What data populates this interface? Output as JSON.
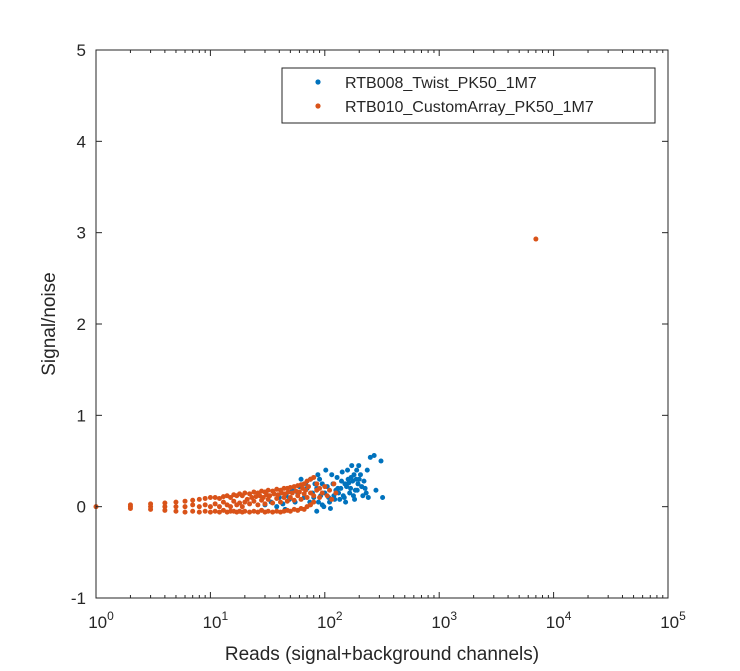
{
  "chart_data": {
    "type": "scatter",
    "title": "",
    "xlabel": "Reads (signal+background channels)",
    "ylabel": "Signal/noise",
    "xscale": "log",
    "xlim": [
      1,
      100000
    ],
    "ylim": [
      -1,
      5
    ],
    "x_ticks": [
      {
        "value": 1,
        "base": "10",
        "exp": "0"
      },
      {
        "value": 10,
        "base": "10",
        "exp": "1"
      },
      {
        "value": 100,
        "base": "10",
        "exp": "2"
      },
      {
        "value": 1000,
        "base": "10",
        "exp": "3"
      },
      {
        "value": 10000,
        "base": "10",
        "exp": "4"
      },
      {
        "value": 100000,
        "base": "10",
        "exp": "5"
      }
    ],
    "y_ticks": [
      -1,
      0,
      1,
      2,
      3,
      4,
      5
    ],
    "grid": false,
    "legend_position": "top-right",
    "series": [
      {
        "name": "RTB008_Twist_PK50_1M7",
        "color": "#0072bd",
        "points": [
          [
            95,
            0.02
          ],
          [
            110,
            0.05
          ],
          [
            120,
            0.12
          ],
          [
            130,
            0.2
          ],
          [
            140,
            0.28
          ],
          [
            150,
            0.25
          ],
          [
            160,
            0.3
          ],
          [
            170,
            0.32
          ],
          [
            180,
            0.35
          ],
          [
            190,
            0.4
          ],
          [
            200,
            0.3
          ],
          [
            210,
            0.22
          ],
          [
            220,
            0.28
          ],
          [
            230,
            0.15
          ],
          [
            240,
            0.1
          ],
          [
            250,
            0.54
          ],
          [
            270,
            0.56
          ],
          [
            280,
            0.18
          ],
          [
            310,
            0.5
          ],
          [
            320,
            0.1
          ],
          [
            115,
            0.35
          ],
          [
            125,
            0.18
          ],
          [
            135,
            0.08
          ],
          [
            145,
            0.12
          ],
          [
            155,
            0.22
          ],
          [
            165,
            0.15
          ],
          [
            175,
            0.28
          ],
          [
            185,
            0.18
          ],
          [
            195,
            0.25
          ],
          [
            100,
            0.15
          ],
          [
            105,
            0.22
          ],
          [
            90,
            0.3
          ],
          [
            85,
            0.2
          ],
          [
            80,
            0.1
          ],
          [
            88,
            0.05
          ],
          [
            98,
            0.0
          ],
          [
            108,
            0.1
          ],
          [
            118,
            0.25
          ],
          [
            128,
            0.32
          ],
          [
            138,
            0.2
          ],
          [
            148,
            0.1
          ],
          [
            158,
            0.4
          ],
          [
            168,
            0.2
          ],
          [
            178,
            0.12
          ],
          [
            188,
            0.3
          ],
          [
            198,
            0.45
          ],
          [
            112,
            -0.02
          ],
          [
            122,
            0.08
          ],
          [
            132,
            0.15
          ],
          [
            142,
            0.38
          ],
          [
            152,
            0.05
          ],
          [
            162,
            0.26
          ],
          [
            172,
            0.45
          ],
          [
            182,
            0.08
          ],
          [
            192,
            0.18
          ],
          [
            205,
            0.35
          ],
          [
            215,
            0.12
          ],
          [
            225,
            0.2
          ],
          [
            235,
            0.4
          ],
          [
            95,
            0.25
          ],
          [
            102,
            0.4
          ],
          [
            92,
            0.12
          ],
          [
            87,
            0.35
          ],
          [
            82,
            0.25
          ],
          [
            78,
            0.15
          ],
          [
            74,
            0.05
          ],
          [
            70,
            0.2
          ],
          [
            66,
            0.1
          ],
          [
            62,
            0.3
          ],
          [
            58,
            0.15
          ],
          [
            55,
            0.05
          ],
          [
            52,
            0.18
          ],
          [
            49,
            0.08
          ],
          [
            46,
            0.12
          ],
          [
            43,
            0.03
          ],
          [
            40,
            0.1
          ],
          [
            75,
            0.3
          ],
          [
            68,
            0.25
          ],
          [
            60,
            0.22
          ],
          [
            85,
            -0.05
          ],
          [
            45,
            -0.03
          ],
          [
            38,
            0.0
          ],
          [
            34,
            0.05
          ],
          [
            30,
            0.02
          ]
        ]
      },
      {
        "name": "RTB010_CustomArray_PK50_1M7",
        "color": "#d95319",
        "points": [
          [
            1,
            0.0
          ],
          [
            2,
            0.0
          ],
          [
            2,
            0.02
          ],
          [
            2,
            -0.02
          ],
          [
            3,
            0.0
          ],
          [
            3,
            0.03
          ],
          [
            3,
            -0.03
          ],
          [
            4,
            0.0
          ],
          [
            4,
            0.04
          ],
          [
            4,
            -0.04
          ],
          [
            5,
            0.0
          ],
          [
            5,
            0.05
          ],
          [
            5,
            -0.05
          ],
          [
            6,
            0.0
          ],
          [
            6,
            0.06
          ],
          [
            6,
            -0.06
          ],
          [
            7,
            0.02
          ],
          [
            7,
            0.07
          ],
          [
            7,
            -0.05
          ],
          [
            8,
            0.0
          ],
          [
            8,
            0.08
          ],
          [
            8,
            -0.06
          ],
          [
            9,
            0.02
          ],
          [
            9,
            0.09
          ],
          [
            9,
            -0.05
          ],
          [
            10,
            0.0
          ],
          [
            10,
            0.1
          ],
          [
            10,
            -0.06
          ],
          [
            11,
            0.03
          ],
          [
            11,
            0.1
          ],
          [
            11,
            -0.05
          ],
          [
            12,
            0.0
          ],
          [
            12,
            0.09
          ],
          [
            12,
            -0.06
          ],
          [
            13,
            0.05
          ],
          [
            13,
            0.11
          ],
          [
            13,
            -0.04
          ],
          [
            14,
            0.02
          ],
          [
            14,
            0.12
          ],
          [
            14,
            -0.06
          ],
          [
            15,
            0.0
          ],
          [
            15,
            0.1
          ],
          [
            15,
            -0.05
          ],
          [
            16,
            0.06
          ],
          [
            16,
            0.13
          ],
          [
            16,
            -0.05
          ],
          [
            17,
            0.02
          ],
          [
            17,
            0.12
          ],
          [
            17,
            -0.06
          ],
          [
            18,
            0.04
          ],
          [
            18,
            0.14
          ],
          [
            18,
            -0.05
          ],
          [
            19,
            0.0
          ],
          [
            19,
            0.12
          ],
          [
            19,
            -0.06
          ],
          [
            20,
            0.05
          ],
          [
            20,
            0.15
          ],
          [
            20,
            -0.05
          ],
          [
            22,
            0.03
          ],
          [
            22,
            0.14
          ],
          [
            22,
            -0.06
          ],
          [
            24,
            0.06
          ],
          [
            24,
            0.16
          ],
          [
            24,
            -0.05
          ],
          [
            26,
            0.02
          ],
          [
            26,
            0.15
          ],
          [
            26,
            -0.06
          ],
          [
            28,
            0.07
          ],
          [
            28,
            0.17
          ],
          [
            28,
            -0.04
          ],
          [
            30,
            0.03
          ],
          [
            30,
            0.16
          ],
          [
            30,
            -0.06
          ],
          [
            32,
            0.08
          ],
          [
            32,
            0.18
          ],
          [
            32,
            -0.05
          ],
          [
            35,
            0.04
          ],
          [
            35,
            0.17
          ],
          [
            35,
            -0.06
          ],
          [
            38,
            0.09
          ],
          [
            38,
            0.19
          ],
          [
            38,
            -0.05
          ],
          [
            41,
            0.05
          ],
          [
            41,
            0.18
          ],
          [
            41,
            -0.06
          ],
          [
            44,
            0.1
          ],
          [
            44,
            0.2
          ],
          [
            44,
            -0.05
          ],
          [
            47,
            0.06
          ],
          [
            47,
            0.2
          ],
          [
            47,
            -0.04
          ],
          [
            50,
            0.1
          ],
          [
            50,
            0.21
          ],
          [
            50,
            -0.05
          ],
          [
            54,
            0.07
          ],
          [
            54,
            0.22
          ],
          [
            54,
            -0.03
          ],
          [
            58,
            0.12
          ],
          [
            58,
            0.23
          ],
          [
            58,
            -0.04
          ],
          [
            62,
            0.08
          ],
          [
            62,
            0.24
          ],
          [
            62,
            -0.02
          ],
          [
            66,
            0.14
          ],
          [
            66,
            0.25
          ],
          [
            66,
            -0.03
          ],
          [
            70,
            0.1
          ],
          [
            70,
            0.28
          ],
          [
            70,
            0.0
          ],
          [
            75,
            0.15
          ],
          [
            75,
            0.3
          ],
          [
            75,
            0.02
          ],
          [
            80,
            0.12
          ],
          [
            80,
            0.32
          ],
          [
            80,
            0.05
          ],
          [
            85,
            0.18
          ],
          [
            85,
            0.25
          ],
          [
            90,
            0.1
          ],
          [
            90,
            0.2
          ],
          [
            95,
            0.15
          ],
          [
            100,
            0.22
          ],
          [
            105,
            0.12
          ],
          [
            110,
            0.18
          ],
          [
            115,
            0.08
          ],
          [
            120,
            0.25
          ],
          [
            125,
            0.15
          ],
          [
            21,
            0.08
          ],
          [
            23,
            0.1
          ],
          [
            25,
            0.11
          ],
          [
            27,
            0.12
          ],
          [
            29,
            0.1
          ],
          [
            31,
            0.13
          ],
          [
            33,
            0.12
          ],
          [
            36,
            0.14
          ],
          [
            39,
            0.13
          ],
          [
            42,
            0.15
          ],
          [
            45,
            0.14
          ],
          [
            48,
            0.16
          ],
          [
            52,
            0.15
          ],
          [
            56,
            0.17
          ],
          [
            60,
            0.16
          ],
          [
            64,
            0.2
          ],
          [
            68,
            0.18
          ],
          [
            72,
            0.22
          ],
          [
            7000,
            2.93
          ]
        ]
      }
    ]
  }
}
